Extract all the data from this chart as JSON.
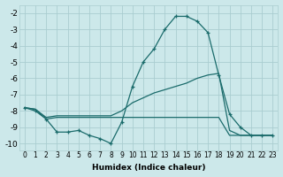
{
  "xlabel": "Humidex (Indice chaleur)",
  "background_color": "#cce8ea",
  "grid_color": "#aacdd0",
  "line_color": "#1a6b6b",
  "xlim": [
    -0.5,
    23.5
  ],
  "ylim": [
    -10.4,
    -1.5
  ],
  "yticks": [
    -10,
    -9,
    -8,
    -7,
    -6,
    -5,
    -4,
    -3,
    -2
  ],
  "xticks": [
    0,
    1,
    2,
    3,
    4,
    5,
    6,
    7,
    8,
    9,
    10,
    11,
    12,
    13,
    14,
    15,
    16,
    17,
    18,
    19,
    20,
    21,
    22,
    23
  ],
  "line1_x": [
    0,
    1,
    2,
    3,
    4,
    5,
    6,
    7,
    8,
    9,
    10,
    11,
    12,
    13,
    14,
    15,
    16,
    17,
    18,
    19,
    20,
    21,
    22,
    23
  ],
  "line1_y": [
    -7.8,
    -8.0,
    -8.5,
    -9.3,
    -9.3,
    -9.2,
    -9.5,
    -9.7,
    -10.0,
    -8.7,
    -6.5,
    -5.0,
    -4.2,
    -3.0,
    -2.2,
    -2.2,
    -2.5,
    -3.2,
    -5.8,
    -8.2,
    -9.0,
    -9.5,
    -9.5,
    -9.5
  ],
  "line2_x": [
    0,
    1,
    2,
    3,
    4,
    5,
    6,
    7,
    8,
    9,
    10,
    11,
    12,
    13,
    14,
    15,
    16,
    17,
    18,
    19,
    20,
    21,
    22,
    23
  ],
  "line2_y": [
    -7.8,
    -7.9,
    -8.4,
    -8.3,
    -8.3,
    -8.3,
    -8.3,
    -8.3,
    -8.3,
    -8.0,
    -7.5,
    -7.2,
    -6.9,
    -6.7,
    -6.5,
    -6.3,
    -6.0,
    -5.8,
    -5.7,
    -9.2,
    -9.5,
    -9.5,
    -9.5,
    -9.5
  ],
  "line3_x": [
    0,
    1,
    2,
    3,
    4,
    5,
    6,
    7,
    8,
    9,
    10,
    11,
    12,
    13,
    14,
    15,
    16,
    17,
    18,
    19,
    20,
    21,
    22,
    23
  ],
  "line3_y": [
    -7.8,
    -7.9,
    -8.5,
    -8.4,
    -8.4,
    -8.4,
    -8.4,
    -8.4,
    -8.4,
    -8.4,
    -8.4,
    -8.4,
    -8.4,
    -8.4,
    -8.4,
    -8.4,
    -8.4,
    -8.4,
    -8.4,
    -9.5,
    -9.5,
    -9.5,
    -9.5,
    -9.5
  ]
}
